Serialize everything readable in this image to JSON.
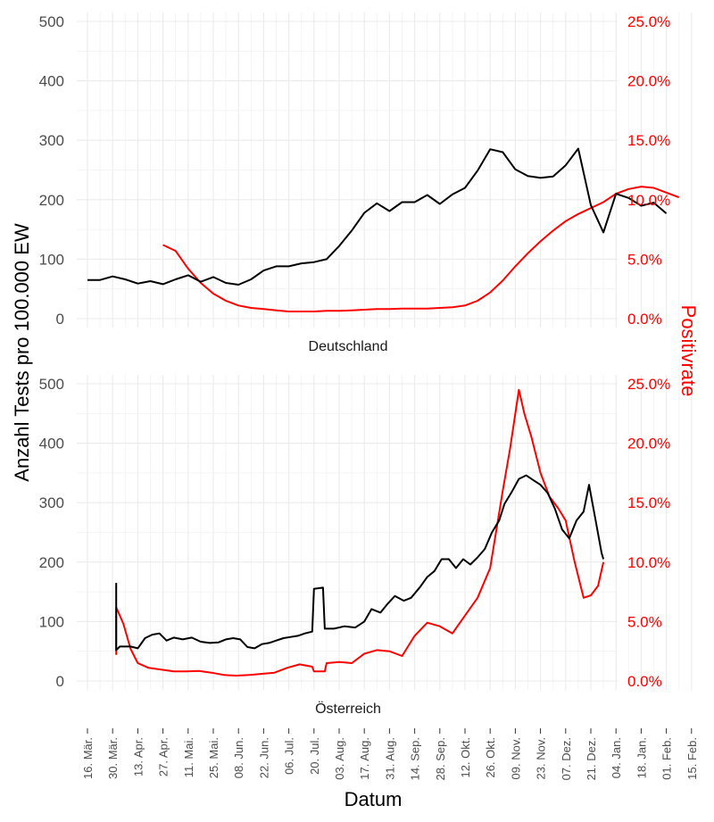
{
  "chart_data": {
    "type": "line",
    "xlabel": "Datum",
    "ylabel_left": "Anzahl Tests pro 100.000 EW",
    "ylabel_right": "Positivrate",
    "colors": {
      "tests": "#000000",
      "positivity": "#ff0000"
    },
    "x_tick_labels": [
      "16. Mär.",
      "30. Mär.",
      "13. Apr.",
      "27. Apr.",
      "11. Mai.",
      "25. Mai.",
      "08. Jun.",
      "22. Jun.",
      "06. Jul.",
      "20. Jul.",
      "03. Aug.",
      "17. Aug.",
      "31. Aug.",
      "14. Sep.",
      "28. Sep.",
      "12. Okt.",
      "26. Okt.",
      "09. Nov.",
      "23. Nov.",
      "07. Dez.",
      "21. Dez.",
      "04. Jan.",
      "18. Jan.",
      "01. Feb.",
      "15. Feb."
    ],
    "y_left_ticks": [
      "0",
      "100",
      "200",
      "300",
      "400",
      "500"
    ],
    "y_right_ticks": [
      "0.0%",
      "5.0%",
      "10.0%",
      "15.0%",
      "20.0%",
      "25.0%"
    ],
    "ylim_left": [
      0,
      500
    ],
    "ylim_right": [
      0,
      25
    ],
    "grid": true,
    "facets": [
      {
        "label": "Deutschland",
        "tests": [
          [
            "2020-03-16",
            65
          ],
          [
            "2020-03-23",
            65
          ],
          [
            "2020-03-30",
            71
          ],
          [
            "2020-04-06",
            66
          ],
          [
            "2020-04-13",
            59
          ],
          [
            "2020-04-20",
            63
          ],
          [
            "2020-04-27",
            58
          ],
          [
            "2020-05-04",
            66
          ],
          [
            "2020-05-11",
            73
          ],
          [
            "2020-05-18",
            62
          ],
          [
            "2020-05-25",
            70
          ],
          [
            "2020-06-01",
            60
          ],
          [
            "2020-06-08",
            57
          ],
          [
            "2020-06-15",
            66
          ],
          [
            "2020-06-22",
            81
          ],
          [
            "2020-06-29",
            88
          ],
          [
            "2020-07-06",
            88
          ],
          [
            "2020-07-13",
            93
          ],
          [
            "2020-07-20",
            95
          ],
          [
            "2020-07-27",
            100
          ],
          [
            "2020-08-03",
            122
          ],
          [
            "2020-08-10",
            148
          ],
          [
            "2020-08-17",
            178
          ],
          [
            "2020-08-24",
            194
          ],
          [
            "2020-08-31",
            181
          ],
          [
            "2020-09-07",
            196
          ],
          [
            "2020-09-14",
            196
          ],
          [
            "2020-09-21",
            208
          ],
          [
            "2020-09-28",
            193
          ],
          [
            "2020-10-05",
            209
          ],
          [
            "2020-10-12",
            220
          ],
          [
            "2020-10-19",
            249
          ],
          [
            "2020-10-26",
            285
          ],
          [
            "2020-11-02",
            280
          ],
          [
            "2020-11-09",
            251
          ],
          [
            "2020-11-16",
            240
          ],
          [
            "2020-11-23",
            237
          ],
          [
            "2020-11-30",
            239
          ],
          [
            "2020-12-07",
            258
          ],
          [
            "2020-12-14",
            286
          ],
          [
            "2020-12-21",
            191
          ],
          [
            "2020-12-28",
            145
          ],
          [
            "2021-01-04",
            210
          ],
          [
            "2021-01-11",
            203
          ],
          [
            "2021-01-18",
            190
          ],
          [
            "2021-01-25",
            195
          ],
          [
            "2021-02-01",
            177
          ]
        ],
        "positivity": [
          [
            "2020-04-27",
            6.2
          ],
          [
            "2020-05-04",
            5.7
          ],
          [
            "2020-05-11",
            4.2
          ],
          [
            "2020-05-18",
            3.0
          ],
          [
            "2020-05-25",
            2.1
          ],
          [
            "2020-06-01",
            1.5
          ],
          [
            "2020-06-08",
            1.1
          ],
          [
            "2020-06-15",
            0.9
          ],
          [
            "2020-06-22",
            0.8
          ],
          [
            "2020-06-29",
            0.7
          ],
          [
            "2020-07-06",
            0.6
          ],
          [
            "2020-07-13",
            0.6
          ],
          [
            "2020-07-20",
            0.6
          ],
          [
            "2020-07-27",
            0.65
          ],
          [
            "2020-08-03",
            0.65
          ],
          [
            "2020-08-10",
            0.7
          ],
          [
            "2020-08-17",
            0.75
          ],
          [
            "2020-08-24",
            0.8
          ],
          [
            "2020-08-31",
            0.8
          ],
          [
            "2020-09-07",
            0.85
          ],
          [
            "2020-09-14",
            0.85
          ],
          [
            "2020-09-21",
            0.85
          ],
          [
            "2020-09-28",
            0.9
          ],
          [
            "2020-10-05",
            0.95
          ],
          [
            "2020-10-12",
            1.1
          ],
          [
            "2020-10-19",
            1.5
          ],
          [
            "2020-10-26",
            2.2
          ],
          [
            "2020-11-02",
            3.2
          ],
          [
            "2020-11-09",
            4.4
          ],
          [
            "2020-11-16",
            5.5
          ],
          [
            "2020-11-23",
            6.5
          ],
          [
            "2020-11-30",
            7.4
          ],
          [
            "2020-12-07",
            8.2
          ],
          [
            "2020-12-14",
            8.8
          ],
          [
            "2020-12-21",
            9.3
          ],
          [
            "2020-12-28",
            9.8
          ],
          [
            "2021-01-04",
            10.5
          ],
          [
            "2021-01-11",
            10.9
          ],
          [
            "2021-01-18",
            11.1
          ],
          [
            "2021-01-25",
            11.0
          ],
          [
            "2021-02-01",
            10.6
          ],
          [
            "2021-02-08",
            10.2
          ]
        ]
      },
      {
        "label": "Österreich",
        "tests": [
          [
            "2020-04-01",
            165
          ],
          [
            "2020-04-01",
            52
          ],
          [
            "2020-04-03",
            58
          ],
          [
            "2020-04-09",
            58
          ],
          [
            "2020-04-13",
            55
          ],
          [
            "2020-04-17",
            72
          ],
          [
            "2020-04-21",
            78
          ],
          [
            "2020-04-25",
            80
          ],
          [
            "2020-04-29",
            68
          ],
          [
            "2020-05-03",
            73
          ],
          [
            "2020-05-08",
            70
          ],
          [
            "2020-05-13",
            73
          ],
          [
            "2020-05-18",
            66
          ],
          [
            "2020-05-23",
            64
          ],
          [
            "2020-05-28",
            65
          ],
          [
            "2020-06-01",
            70
          ],
          [
            "2020-06-05",
            72
          ],
          [
            "2020-06-09",
            70
          ],
          [
            "2020-06-13",
            57
          ],
          [
            "2020-06-17",
            55
          ],
          [
            "2020-06-21",
            62
          ],
          [
            "2020-06-25",
            64
          ],
          [
            "2020-06-29",
            68
          ],
          [
            "2020-07-03",
            72
          ],
          [
            "2020-07-07",
            74
          ],
          [
            "2020-07-11",
            76
          ],
          [
            "2020-07-15",
            80
          ],
          [
            "2020-07-19",
            83
          ],
          [
            "2020-07-20",
            155
          ],
          [
            "2020-07-25",
            157
          ],
          [
            "2020-07-26",
            88
          ],
          [
            "2020-07-31",
            88
          ],
          [
            "2020-08-06",
            92
          ],
          [
            "2020-08-12",
            90
          ],
          [
            "2020-08-17",
            100
          ],
          [
            "2020-08-21",
            121
          ],
          [
            "2020-08-26",
            115
          ],
          [
            "2020-08-30",
            130
          ],
          [
            "2020-09-03",
            143
          ],
          [
            "2020-09-08",
            135
          ],
          [
            "2020-09-12",
            140
          ],
          [
            "2020-09-17",
            158
          ],
          [
            "2020-09-21",
            175
          ],
          [
            "2020-09-25",
            185
          ],
          [
            "2020-09-29",
            205
          ],
          [
            "2020-10-03",
            205
          ],
          [
            "2020-10-07",
            190
          ],
          [
            "2020-10-11",
            205
          ],
          [
            "2020-10-15",
            196
          ],
          [
            "2020-10-19",
            208
          ],
          [
            "2020-10-23",
            222
          ],
          [
            "2020-10-27",
            250
          ],
          [
            "2020-10-31",
            270
          ],
          [
            "2020-11-03",
            298
          ],
          [
            "2020-11-07",
            318
          ],
          [
            "2020-11-11",
            340
          ],
          [
            "2020-11-15",
            346
          ],
          [
            "2020-11-19",
            338
          ],
          [
            "2020-11-23",
            330
          ],
          [
            "2020-11-27",
            316
          ],
          [
            "2020-12-01",
            290
          ],
          [
            "2020-12-05",
            255
          ],
          [
            "2020-12-09",
            240
          ],
          [
            "2020-12-13",
            270
          ],
          [
            "2020-12-17",
            285
          ],
          [
            "2020-12-20",
            330
          ],
          [
            "2020-12-24",
            265
          ],
          [
            "2020-12-27",
            215
          ],
          [
            "2020-12-28",
            205
          ]
        ],
        "positivity": [
          [
            "2020-04-01",
            2.2
          ],
          [
            "2020-04-01",
            6.2
          ],
          [
            "2020-04-05",
            4.8
          ],
          [
            "2020-04-09",
            2.7
          ],
          [
            "2020-04-13",
            1.5
          ],
          [
            "2020-04-19",
            1.1
          ],
          [
            "2020-04-26",
            0.95
          ],
          [
            "2020-05-03",
            0.8
          ],
          [
            "2020-05-10",
            0.8
          ],
          [
            "2020-05-17",
            0.85
          ],
          [
            "2020-05-24",
            0.7
          ],
          [
            "2020-05-31",
            0.5
          ],
          [
            "2020-06-07",
            0.45
          ],
          [
            "2020-06-14",
            0.5
          ],
          [
            "2020-06-21",
            0.6
          ],
          [
            "2020-06-28",
            0.7
          ],
          [
            "2020-07-05",
            1.1
          ],
          [
            "2020-07-12",
            1.4
          ],
          [
            "2020-07-19",
            1.2
          ],
          [
            "2020-07-20",
            0.8
          ],
          [
            "2020-07-26",
            0.8
          ],
          [
            "2020-07-27",
            1.5
          ],
          [
            "2020-08-03",
            1.6
          ],
          [
            "2020-08-10",
            1.5
          ],
          [
            "2020-08-17",
            2.3
          ],
          [
            "2020-08-24",
            2.6
          ],
          [
            "2020-08-31",
            2.5
          ],
          [
            "2020-09-07",
            2.1
          ],
          [
            "2020-09-14",
            3.8
          ],
          [
            "2020-09-21",
            4.9
          ],
          [
            "2020-09-28",
            4.6
          ],
          [
            "2020-10-05",
            4.0
          ],
          [
            "2020-10-12",
            5.5
          ],
          [
            "2020-10-19",
            7.0
          ],
          [
            "2020-10-26",
            9.5
          ],
          [
            "2020-11-02",
            16.0
          ],
          [
            "2020-11-06",
            19.5
          ],
          [
            "2020-11-09",
            22.5
          ],
          [
            "2020-11-11",
            24.5
          ],
          [
            "2020-11-14",
            22.5
          ],
          [
            "2020-11-18",
            20.5
          ],
          [
            "2020-11-23",
            17.5
          ],
          [
            "2020-11-28",
            15.5
          ],
          [
            "2020-12-03",
            14.5
          ],
          [
            "2020-12-07",
            13.5
          ],
          [
            "2020-12-12",
            10.0
          ],
          [
            "2020-12-17",
            7.0
          ],
          [
            "2020-12-21",
            7.2
          ],
          [
            "2020-12-25",
            8.0
          ],
          [
            "2020-12-28",
            10.0
          ]
        ]
      }
    ]
  }
}
